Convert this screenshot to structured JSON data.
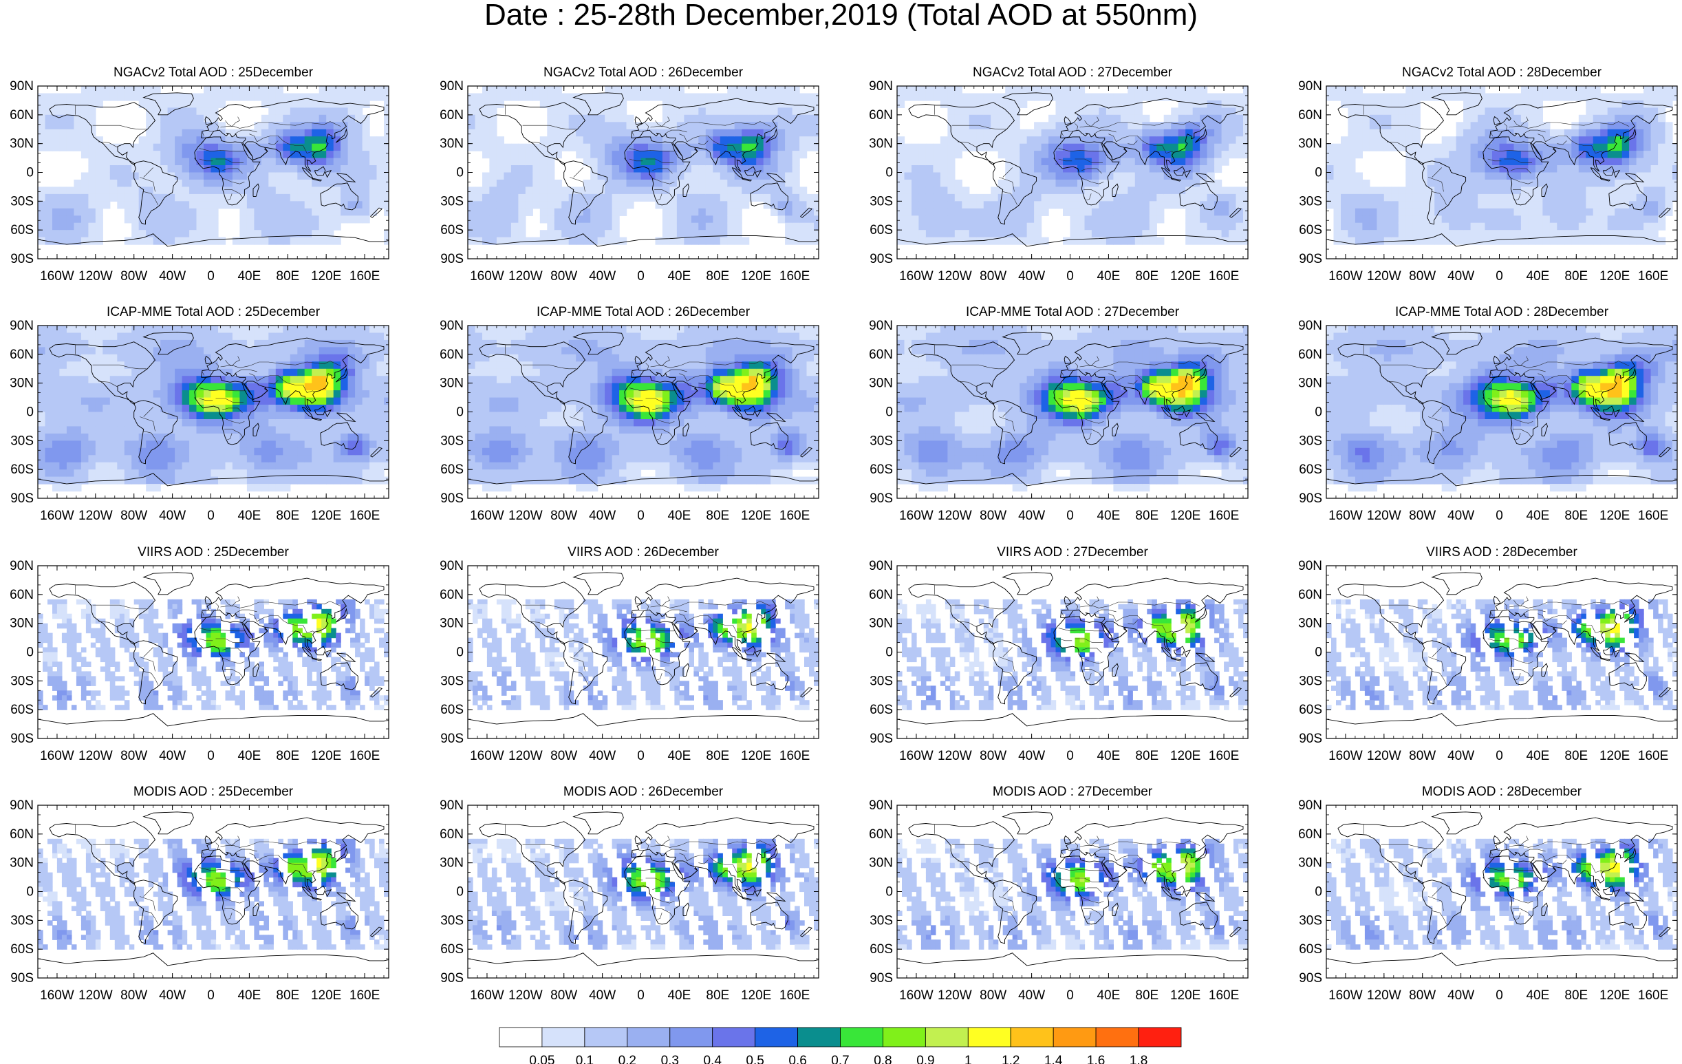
{
  "title": "Date : 25-28th December,2019 (Total AOD at 550nm)",
  "colors": {
    "ocean_base": "#ffffff",
    "coast": "#000000",
    "border": "#222222"
  },
  "rows": [
    {
      "source": "NGACv2",
      "titles": [
        "NGACv2 Total AOD : 25December",
        "NGACv2 Total AOD : 26December",
        "NGACv2 Total AOD : 27December",
        "NGACv2 Total AOD : 28December"
      ],
      "style": "model_light"
    },
    {
      "source": "ICAP-MME",
      "titles": [
        "ICAP-MME Total AOD : 25December",
        "ICAP-MME Total AOD : 26December",
        "ICAP-MME Total AOD : 27December",
        "ICAP-MME Total AOD : 28December"
      ],
      "style": "model_dense"
    },
    {
      "source": "VIIRS",
      "titles": [
        "VIIRS AOD : 25December",
        "VIIRS AOD : 26December",
        "VIIRS AOD : 27December",
        "VIIRS AOD : 28December"
      ],
      "style": "satellite"
    },
    {
      "source": "MODIS",
      "titles": [
        "MODIS AOD : 25December",
        "MODIS AOD : 26December",
        "MODIS AOD : 27December",
        "MODIS AOD : 28December"
      ],
      "style": "satellite_dense"
    }
  ],
  "lat_labels": [
    "90N",
    "60N",
    "30N",
    "0",
    "30S",
    "60S",
    "90S"
  ],
  "lon_labels": [
    "160W",
    "120W",
    "80W",
    "40W",
    "0",
    "40E",
    "80E",
    "120E",
    "160E"
  ],
  "colorbar": {
    "colors": [
      "#ffffff",
      "#d6e2fb",
      "#b6c8f6",
      "#9ab0f1",
      "#8098ee",
      "#6a74ea",
      "#1e63e6",
      "#0a8e8e",
      "#39e639",
      "#80f01a",
      "#c2f050",
      "#ffff22",
      "#ffc21a",
      "#ff9a12",
      "#ff7010",
      "#ff2010"
    ],
    "labels": [
      "0.05",
      "0.1",
      "0.2",
      "0.3",
      "0.4",
      "0.5",
      "0.6",
      "0.7",
      "0.8",
      "0.9",
      "1",
      "1.2",
      "1.4",
      "1.6",
      "1.8"
    ]
  }
}
